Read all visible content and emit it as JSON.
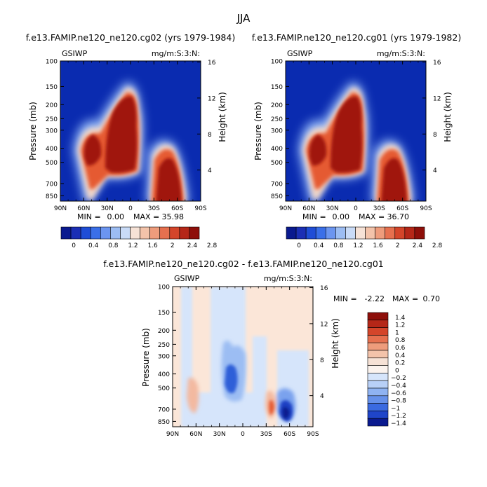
{
  "page": {
    "title": "JJA"
  },
  "chart_data": [
    {
      "type": "heatmap",
      "title": "f.e13.FAMIP.ne120_ne120.cg02 (yrs 1979-1984)",
      "left_label": "GSIWP",
      "right_label": "mg/m:S:3:N:",
      "ylabel": "Pressure (mb)",
      "y2label": "Height (km)",
      "xticks": [
        "90N",
        "60N",
        "30N",
        "0",
        "30S",
        "60S",
        "90S"
      ],
      "yticks": [
        "100",
        "150",
        "200",
        "250",
        "300",
        "400",
        "500",
        "700",
        "850"
      ],
      "ylim": [
        100,
        925
      ],
      "y2ticks": [
        "16",
        "12",
        "8",
        "4"
      ],
      "min_label": "MIN =",
      "min_value": "0.00",
      "max_label": "MAX =",
      "max_value": "35.98",
      "colorbar_labels": [
        "0",
        "0.4",
        "0.8",
        "1.2",
        "1.6",
        "2",
        "2.4",
        "2.8"
      ]
    },
    {
      "type": "heatmap",
      "title": "f.e13.FAMIP.ne120_ne120.cg01 (yrs 1979-1982)",
      "left_label": "GSIWP",
      "right_label": "mg/m:S:3:N:",
      "ylabel": "Pressure (mb)",
      "y2label": "Height (km)",
      "xticks": [
        "90N",
        "60N",
        "30N",
        "0",
        "30S",
        "60S",
        "90S"
      ],
      "yticks": [
        "100",
        "150",
        "200",
        "250",
        "300",
        "400",
        "500",
        "700",
        "850"
      ],
      "ylim": [
        100,
        925
      ],
      "y2ticks": [
        "16",
        "12",
        "8",
        "4"
      ],
      "min_label": "MIN =",
      "min_value": "0.00",
      "max_label": "MAX =",
      "max_value": "36.70",
      "colorbar_labels": [
        "0",
        "0.4",
        "0.8",
        "1.2",
        "1.6",
        "2",
        "2.4",
        "2.8"
      ]
    },
    {
      "type": "heatmap",
      "title": "f.e13.FAMIP.ne120_ne120.cg02 - f.e13.FAMIP.ne120_ne120.cg01",
      "left_label": "GSIWP",
      "right_label": "mg/m:S:3:N:",
      "ylabel": "Pressure (mb)",
      "y2label": "Height (km)",
      "xticks": [
        "90N",
        "60N",
        "30N",
        "0",
        "30S",
        "60S",
        "90S"
      ],
      "yticks": [
        "100",
        "150",
        "200",
        "250",
        "300",
        "400",
        "500",
        "700",
        "850"
      ],
      "ylim": [
        100,
        925
      ],
      "y2ticks": [
        "16",
        "12",
        "8",
        "4"
      ],
      "min_label": "MIN =",
      "min_value": "-2.22",
      "max_label": "MAX =",
      "max_value": "0.70",
      "colorbar_labels": [
        "1.4",
        "1.2",
        "1",
        "0.8",
        "0.6",
        "0.4",
        "0.2",
        "0",
        "-0.2",
        "-0.4",
        "-0.6",
        "-0.8",
        "-1",
        "-1.2",
        "-1.4"
      ]
    }
  ]
}
